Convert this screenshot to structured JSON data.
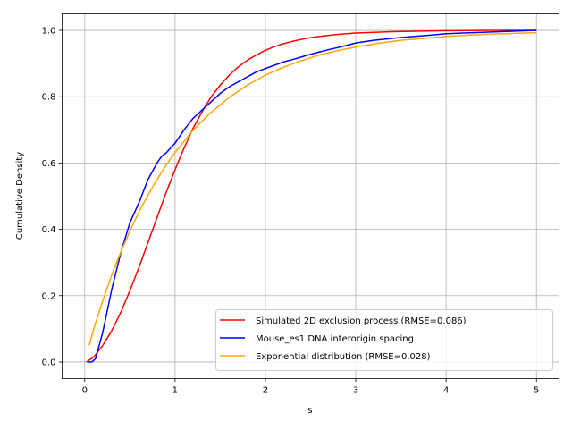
{
  "chart_data": {
    "type": "line",
    "xlabel": "s",
    "ylabel": "Cumulative Density",
    "xlim": [
      -0.25,
      5.25
    ],
    "ylim": [
      -0.05,
      1.05
    ],
    "xticks": [
      0,
      1,
      2,
      3,
      4,
      5
    ],
    "xtick_labels": [
      "0",
      "1",
      "2",
      "3",
      "4",
      "5"
    ],
    "yticks": [
      0.0,
      0.2,
      0.4,
      0.6,
      0.8,
      1.0
    ],
    "ytick_labels": [
      "0.0",
      "0.2",
      "0.4",
      "0.6",
      "0.8",
      "1.0"
    ],
    "grid": true,
    "legend_position": "lower-right",
    "series": [
      {
        "name": "Simulated 2D exclusion process (RMSE=0.086)",
        "color": "#ff0000",
        "x": [
          0.02,
          0.1,
          0.2,
          0.3,
          0.4,
          0.5,
          0.6,
          0.7,
          0.8,
          0.9,
          1.0,
          1.1,
          1.2,
          1.3,
          1.4,
          1.5,
          1.6,
          1.7,
          1.8,
          1.9,
          2.0,
          2.1,
          2.2,
          2.3,
          2.4,
          2.5,
          2.6,
          2.7,
          2.8,
          2.9,
          3.0,
          3.2,
          3.4,
          3.6,
          3.8,
          4.0,
          4.5,
          5.0
        ],
        "y": [
          0.0,
          0.015,
          0.05,
          0.095,
          0.15,
          0.215,
          0.285,
          0.36,
          0.435,
          0.51,
          0.58,
          0.645,
          0.705,
          0.755,
          0.8,
          0.835,
          0.865,
          0.89,
          0.91,
          0.926,
          0.94,
          0.951,
          0.96,
          0.967,
          0.973,
          0.978,
          0.982,
          0.985,
          0.988,
          0.99,
          0.992,
          0.994,
          0.996,
          0.997,
          0.998,
          0.999,
          1.0,
          1.0
        ]
      },
      {
        "name": "Mouse_es1 DNA interorigin spacing",
        "color": "#0000ff",
        "x": [
          0.03,
          0.08,
          0.12,
          0.2,
          0.3,
          0.4,
          0.5,
          0.6,
          0.7,
          0.8,
          0.85,
          0.9,
          1.0,
          1.1,
          1.2,
          1.3,
          1.4,
          1.5,
          1.6,
          1.7,
          1.8,
          1.9,
          2.0,
          2.1,
          2.2,
          2.3,
          2.4,
          2.5,
          2.6,
          2.7,
          2.8,
          2.9,
          3.0,
          3.2,
          3.4,
          3.6,
          3.8,
          4.0,
          4.5,
          5.0
        ],
        "y": [
          0.0,
          0.0,
          0.01,
          0.09,
          0.22,
          0.33,
          0.42,
          0.48,
          0.55,
          0.6,
          0.62,
          0.63,
          0.66,
          0.7,
          0.735,
          0.76,
          0.785,
          0.81,
          0.83,
          0.845,
          0.86,
          0.875,
          0.885,
          0.895,
          0.905,
          0.912,
          0.92,
          0.928,
          0.935,
          0.942,
          0.948,
          0.955,
          0.962,
          0.97,
          0.976,
          0.981,
          0.985,
          0.99,
          0.995,
          1.0
        ]
      },
      {
        "name": "Exponential distribution (RMSE=0.028)",
        "color": "#ffa500",
        "x": [
          0.05,
          0.1,
          0.2,
          0.3,
          0.4,
          0.5,
          0.6,
          0.7,
          0.8,
          0.9,
          1.0,
          1.2,
          1.4,
          1.6,
          1.8,
          2.0,
          2.2,
          2.4,
          2.6,
          2.8,
          3.0,
          3.25,
          3.5,
          3.75,
          4.0,
          4.5,
          5.0
        ],
        "y": [
          0.05,
          0.1,
          0.185,
          0.263,
          0.332,
          0.395,
          0.452,
          0.503,
          0.55,
          0.593,
          0.632,
          0.699,
          0.753,
          0.798,
          0.835,
          0.865,
          0.889,
          0.909,
          0.926,
          0.939,
          0.95,
          0.961,
          0.97,
          0.976,
          0.982,
          0.989,
          0.993
        ]
      }
    ]
  }
}
